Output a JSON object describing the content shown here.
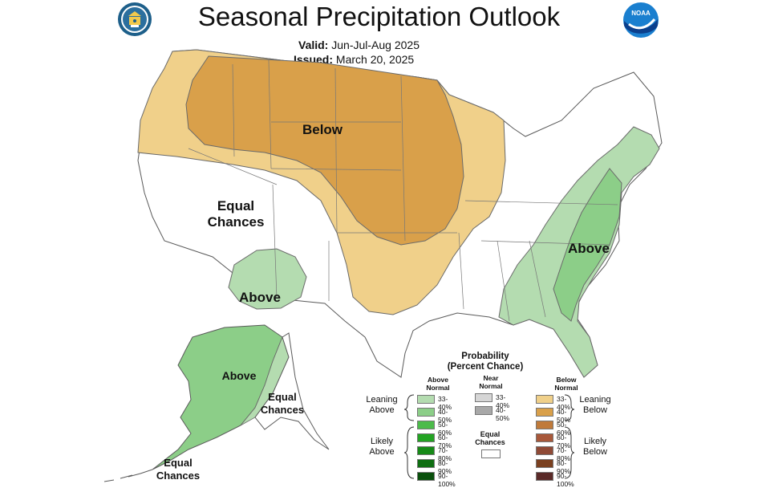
{
  "header": {
    "title": "Seasonal Precipitation Outlook",
    "valid_label": "Valid:",
    "valid_value": "Jun-Jul-Aug 2025",
    "issued_label": "Issued:",
    "issued_value": "March 20, 2025",
    "left_logo_icon": "department-of-commerce-seal-icon",
    "right_logo_icon": "noaa-logo-icon",
    "noaa_logo_text": "NOAA"
  },
  "map": {
    "region_labels": {
      "below": "Below",
      "equal_chances_west_line1": "Equal",
      "equal_chances_west_line2": "Chances",
      "above_southwest": "Above",
      "above_east": "Above",
      "above_alaska": "Above",
      "equal_chances_alaska_line1": "Equal",
      "equal_chances_alaska_line2": "Chances",
      "equal_chances_aleutian_line1": "Equal",
      "equal_chances_aleutian_line2": "Chances"
    },
    "colors": {
      "below_33_40": "#f0d08a",
      "below_40_50": "#d9a04a",
      "above_33_40": "#b4dcb0",
      "above_40_50": "#8cce88",
      "equal_chances": "#ffffff",
      "borders": "#5a5a5a"
    }
  },
  "legend": {
    "title_line1": "Probability",
    "title_line2": "(Percent Chance)",
    "col_above_line1": "Above",
    "col_above_line2": "Normal",
    "col_near_line1": "Near",
    "col_near_line2": "Normal",
    "col_below_line1": "Below",
    "col_below_line2": "Normal",
    "leaning_above_line1": "Leaning",
    "leaning_above_line2": "Above",
    "likely_above_line1": "Likely",
    "likely_above_line2": "Above",
    "leaning_below_line1": "Leaning",
    "leaning_below_line2": "Below",
    "likely_below_line1": "Likely",
    "likely_below_line2": "Below",
    "equal_chances_line1": "Equal",
    "equal_chances_line2": "Chances",
    "above_items": [
      {
        "label": "33-40%",
        "color": "#b4dcb0"
      },
      {
        "label": "40-50%",
        "color": "#8cce88"
      },
      {
        "label": "50-60%",
        "color": "#4cbb4a"
      },
      {
        "label": "60-70%",
        "color": "#23a323"
      },
      {
        "label": "70-80%",
        "color": "#178a18"
      },
      {
        "label": "80-90%",
        "color": "#0f6e12"
      },
      {
        "label": "90-100%",
        "color": "#0a500c"
      }
    ],
    "near_items": [
      {
        "label": "33-40%",
        "color": "#d6d6d6"
      },
      {
        "label": "40-50%",
        "color": "#a8a8a8"
      }
    ],
    "below_items": [
      {
        "label": "33-40%",
        "color": "#f0d08a"
      },
      {
        "label": "40-50%",
        "color": "#d9a04a"
      },
      {
        "label": "50-60%",
        "color": "#c07a3a"
      },
      {
        "label": "60-70%",
        "color": "#a8583a"
      },
      {
        "label": "70-80%",
        "color": "#8f4a36"
      },
      {
        "label": "80-90%",
        "color": "#7a4020"
      },
      {
        "label": "90-100%",
        "color": "#5a2a28"
      }
    ]
  }
}
